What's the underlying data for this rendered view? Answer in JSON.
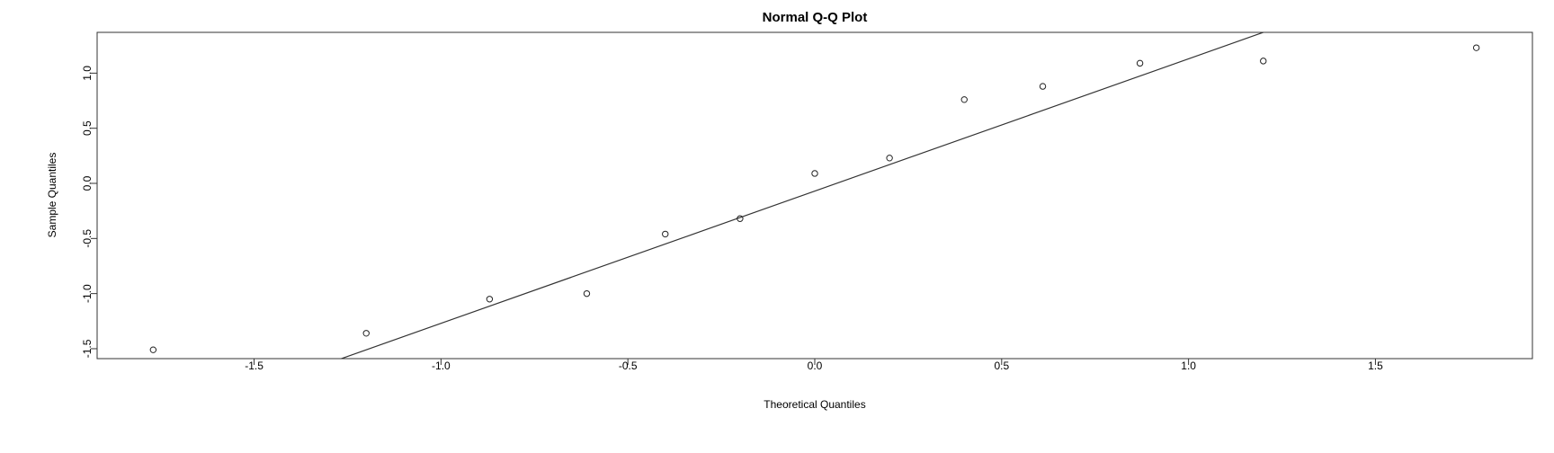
{
  "chart_data": {
    "type": "scatter",
    "title": "Normal Q-Q Plot",
    "xlabel": "Theoretical Quantiles",
    "ylabel": "Sample Quantiles",
    "xlim": [
      -1.92,
      1.92
    ],
    "ylim": [
      -1.59,
      1.37
    ],
    "x_ticks": [
      "-1.5",
      "-1.0",
      "-0.5",
      "0.0",
      "0.5",
      "1.0",
      "1.5"
    ],
    "y_ticks": [
      "-1.5",
      "-1.0",
      "-0.5",
      "0.0",
      "0.5",
      "1.0"
    ],
    "grid": false,
    "series": [
      {
        "x": [
          -1.77,
          -1.2,
          -0.87,
          -0.61,
          -0.4,
          -0.2,
          0.0,
          0.2,
          0.4,
          0.61,
          0.87,
          1.2,
          1.77
        ],
        "y": [
          -1.51,
          -1.36,
          -1.05,
          -1.0,
          -0.46,
          -0.32,
          0.09,
          0.23,
          0.76,
          0.88,
          1.09,
          1.11,
          1.23
        ]
      }
    ],
    "reference_line": {
      "slope": 1.2,
      "intercept": -0.07
    }
  }
}
